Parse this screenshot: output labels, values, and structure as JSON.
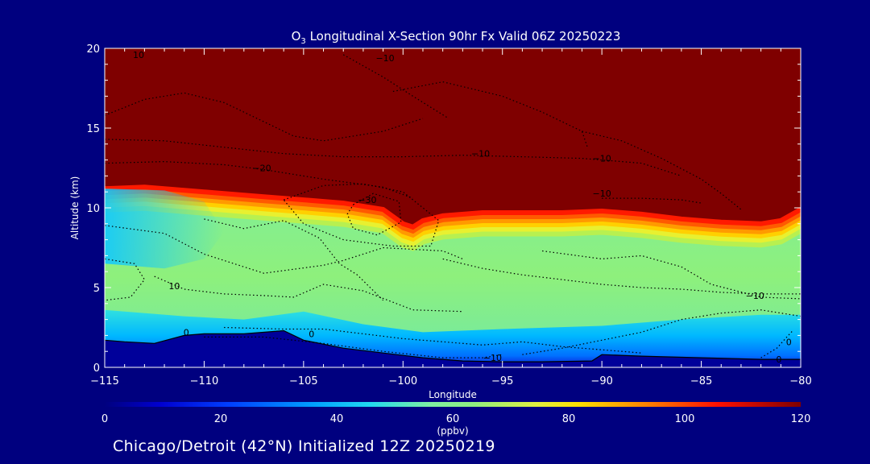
{
  "chart_data": {
    "type": "heatmap",
    "title_prefix": "O",
    "title_subscript": "3",
    "title_rest": " Longitudinal X-Section 90hr  Fx Valid 06Z 20250223",
    "xlabel": "Longitude",
    "ylabel": "Altitude (km)",
    "xlim": [
      -115,
      -80
    ],
    "ylim": [
      0,
      20
    ],
    "x_ticks": [
      -115,
      -110,
      -105,
      -100,
      -95,
      -90,
      -85,
      -80
    ],
    "x_tick_labels": [
      "−115",
      "−110",
      "−105",
      "−100",
      "−95",
      "−90",
      "−85",
      "−80"
    ],
    "y_ticks": [
      0,
      5,
      10,
      15,
      20
    ],
    "y_tick_labels": [
      "0",
      "5",
      "10",
      "15",
      "20"
    ],
    "colorbar": {
      "ticks": [
        0,
        20,
        40,
        60,
        80,
        100,
        120
      ],
      "tick_labels": [
        "0",
        "20",
        "40",
        "60",
        "80",
        "100",
        "120"
      ],
      "unit_label": "(ppbv)",
      "range": [
        0,
        120
      ]
    },
    "surface_profile": {
      "x": [
        -115,
        -114,
        -112.5,
        -111,
        -110,
        -108,
        -106,
        -105,
        -103,
        -101,
        -99,
        -97,
        -95,
        -93,
        -90.5,
        -90,
        -88,
        -85,
        -82,
        -80.5,
        -80
      ],
      "y": [
        1.7,
        1.6,
        1.5,
        2.0,
        2.1,
        2.1,
        2.3,
        1.7,
        1.2,
        0.9,
        0.6,
        0.4,
        0.35,
        0.35,
        0.4,
        0.8,
        0.7,
        0.6,
        0.5,
        0.5,
        0.5
      ]
    },
    "tropopause_profile": {
      "x": [
        -115,
        -113,
        -111,
        -109,
        -107,
        -105,
        -103,
        -101,
        -100,
        -99.5,
        -99,
        -98,
        -96,
        -94,
        -92,
        -90,
        -88,
        -86,
        -84,
        -82,
        -81,
        -80
      ],
      "y": [
        11.3,
        11.4,
        11.2,
        11.0,
        10.8,
        10.6,
        10.4,
        10.0,
        9.1,
        8.9,
        9.3,
        9.6,
        9.8,
        9.8,
        9.8,
        9.9,
        9.7,
        9.4,
        9.2,
        9.1,
        9.3,
        10.0
      ]
    },
    "contour_labels": [
      {
        "text": "10",
        "x": -113.3,
        "y": 19.6
      },
      {
        "text": "−10",
        "x": -100.9,
        "y": 19.4
      },
      {
        "text": "−10",
        "x": -96.1,
        "y": 13.4
      },
      {
        "text": "−10",
        "x": -90.0,
        "y": 13.1
      },
      {
        "text": "−20",
        "x": -107.1,
        "y": 12.5
      },
      {
        "text": "−10",
        "x": -90.0,
        "y": 10.9
      },
      {
        "text": "−30",
        "x": -101.8,
        "y": 10.5
      },
      {
        "text": "10",
        "x": -111.5,
        "y": 5.1
      },
      {
        "text": "−10",
        "x": -82.3,
        "y": 4.5
      },
      {
        "text": "0",
        "x": -110.9,
        "y": 2.2
      },
      {
        "text": "0",
        "x": -104.6,
        "y": 2.1
      },
      {
        "text": "−10",
        "x": -95.5,
        "y": 0.6
      },
      {
        "text": "0",
        "x": -81.1,
        "y": 0.5
      },
      {
        "text": "0",
        "x": -80.6,
        "y": 1.6
      }
    ]
  },
  "footer": {
    "location_text": "Chicago/Detroit (42°N) Initialized 12Z 20250219"
  },
  "colors": {
    "background": "#00007f",
    "stratosphere": "#7f0000"
  }
}
